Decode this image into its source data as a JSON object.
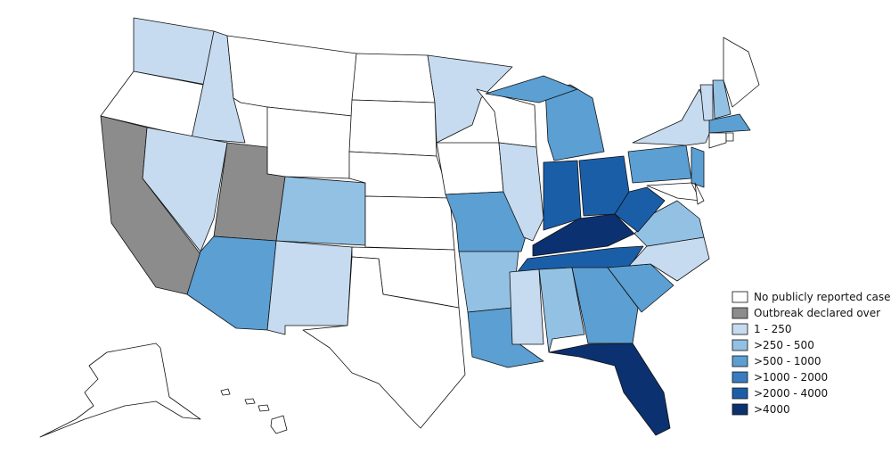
{
  "legend": {
    "items": [
      {
        "label": "No publicly reported cases",
        "color": "#ffffff"
      },
      {
        "label": "Outbreak declared over",
        "color": "#8c8c8c"
      },
      {
        "label": "1 - 250",
        "color": "#c6dbef"
      },
      {
        "label": ">250 - 500",
        "color": "#93c1e3"
      },
      {
        "label": ">500 - 1000",
        "color": "#5b9fd3"
      },
      {
        "label": ">1000 - 2000",
        "color": "#3a7cc2"
      },
      {
        "label": ">2000 - 4000",
        "color": "#1b5ea8"
      },
      {
        "label": ">4000",
        "color": "#0b3170"
      }
    ]
  }
}
